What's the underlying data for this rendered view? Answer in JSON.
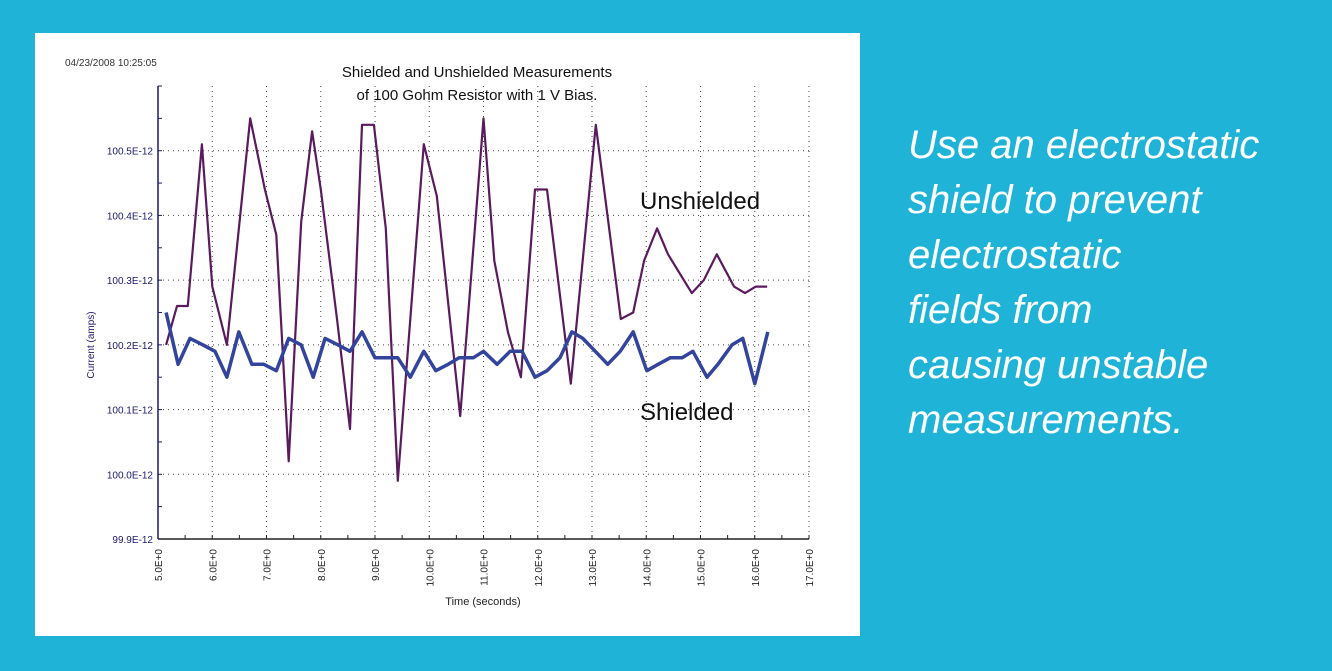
{
  "colors": {
    "background": "#1fb4d7",
    "panel": "#ffffff",
    "unshielded": "#5a1a5e",
    "shielded": "#33449c",
    "axis": "#1a1a6e"
  },
  "caption": {
    "lines": [
      "Use an electrostatic",
      "shield to prevent",
      "electrostatic",
      "fields from",
      "causing unstable",
      "measurements."
    ]
  },
  "chart_data": {
    "type": "line",
    "timestamp": "04/23/2008 10:25:05",
    "title": [
      "Shielded and Unshielded Measurements",
      "of 100 Gohm Resistor with 1 V Bias."
    ],
    "xlabel": "Time (seconds)",
    "ylabel": "Current (amps)",
    "xlim": [
      5,
      17
    ],
    "ylim": [
      99.9,
      100.6
    ],
    "grid": true,
    "x_ticks": [
      5,
      6,
      7,
      8,
      9,
      10,
      11,
      12,
      13,
      14,
      15,
      16,
      17
    ],
    "x_tick_labels": [
      "5.0E+0",
      "6.0E+0",
      "7.0E+0",
      "8.0E+0",
      "9.0E+0",
      "10.0E+0",
      "11.0E+0",
      "12.0E+0",
      "13.0E+0",
      "14.0E+0",
      "15.0E+0",
      "16.0E+0",
      "17.0E+0"
    ],
    "y_ticks": [
      99.9,
      100.0,
      100.1,
      100.2,
      100.3,
      100.4,
      100.5
    ],
    "y_tick_labels": [
      "99.9E-12",
      "100.0E-12",
      "100.1E-12",
      "100.2E-12",
      "100.3E-12",
      "100.4E-12",
      "100.5E-12"
    ],
    "series": [
      {
        "name": "Unshielded",
        "color": "#5a1a5e",
        "x": [
          5.15,
          5.35,
          5.55,
          5.81,
          6.0,
          6.27,
          6.7,
          6.97,
          7.18,
          7.41,
          7.64,
          7.84,
          8.0,
          8.3,
          8.54,
          8.76,
          8.98,
          9.2,
          9.42,
          9.9,
          10.14,
          10.57,
          11.0,
          11.2,
          11.45,
          11.69,
          11.95,
          12.17,
          12.61,
          13.07,
          13.53,
          13.76,
          13.96,
          14.2,
          14.4,
          14.84,
          15.06,
          15.3,
          15.62,
          15.82,
          16.02,
          16.23
        ],
        "y": [
          100.2,
          100.26,
          100.26,
          100.51,
          100.29,
          100.2,
          100.55,
          100.44,
          100.37,
          100.02,
          100.39,
          100.53,
          100.44,
          100.24,
          100.07,
          100.54,
          100.54,
          100.38,
          99.99,
          100.51,
          100.43,
          100.09,
          100.55,
          100.33,
          100.22,
          100.15,
          100.44,
          100.44,
          100.14,
          100.54,
          100.24,
          100.25,
          100.33,
          100.38,
          100.34,
          100.28,
          100.3,
          100.34,
          100.29,
          100.28,
          100.29,
          100.29
        ]
      },
      {
        "name": "Shielded",
        "color": "#33449c",
        "x": [
          5.15,
          5.37,
          5.59,
          5.83,
          6.05,
          6.27,
          6.49,
          6.73,
          6.95,
          7.18,
          7.41,
          7.64,
          7.86,
          8.08,
          8.32,
          8.54,
          8.76,
          9.0,
          9.22,
          9.42,
          9.65,
          9.9,
          10.12,
          10.35,
          10.55,
          10.81,
          11.0,
          11.25,
          11.49,
          11.71,
          11.95,
          12.17,
          12.41,
          12.63,
          12.83,
          13.06,
          13.29,
          13.52,
          13.76,
          14.01,
          14.22,
          14.44,
          14.66,
          14.86,
          15.12,
          15.32,
          15.58,
          15.78,
          16.0,
          16.24
        ],
        "y": [
          100.25,
          100.17,
          100.21,
          100.2,
          100.19,
          100.15,
          100.22,
          100.17,
          100.17,
          100.16,
          100.21,
          100.2,
          100.15,
          100.21,
          100.2,
          100.19,
          100.22,
          100.18,
          100.18,
          100.18,
          100.15,
          100.19,
          100.16,
          100.17,
          100.18,
          100.18,
          100.19,
          100.17,
          100.19,
          100.19,
          100.15,
          100.16,
          100.18,
          100.22,
          100.21,
          100.19,
          100.17,
          100.19,
          100.22,
          100.16,
          100.17,
          100.18,
          100.18,
          100.19,
          100.15,
          100.17,
          100.2,
          100.21,
          100.14,
          100.22
        ]
      }
    ]
  }
}
